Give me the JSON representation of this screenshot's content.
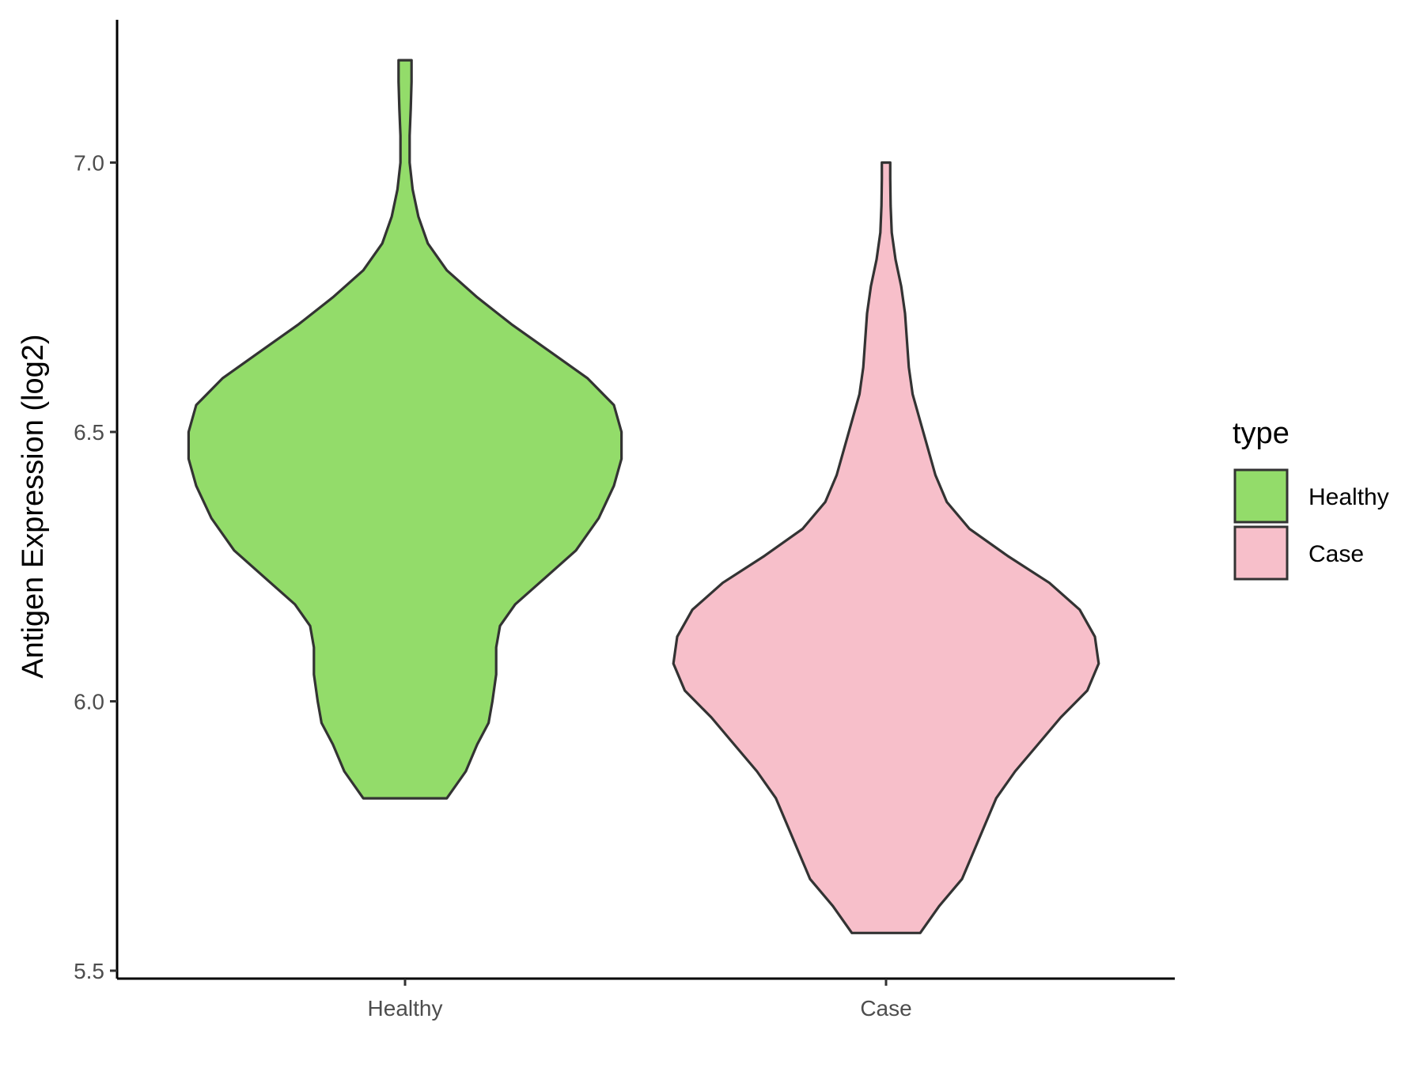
{
  "chart_data": {
    "type": "violin",
    "ylabel": "Antigen Expression (log2)",
    "xlabel": "",
    "ylim": [
      5.5,
      7.25
    ],
    "yticks": [
      5.5,
      6.0,
      6.5,
      7.0
    ],
    "ytick_labels": [
      "5.5",
      "6.0",
      "6.5",
      "7.0"
    ],
    "categories": [
      "Healthy",
      "Case"
    ],
    "legend": {
      "title": "type",
      "position": "right",
      "entries": [
        {
          "label": "Healthy",
          "color": "#93DC6A"
        },
        {
          "label": "Case",
          "color": "#F7BFCA"
        }
      ]
    },
    "series": [
      {
        "category": "Healthy",
        "color": "#93DC6A",
        "ymin": 5.82,
        "ymax": 7.19,
        "density": [
          [
            5.82,
            0.11
          ],
          [
            5.87,
            0.16
          ],
          [
            5.92,
            0.19
          ],
          [
            5.96,
            0.22
          ],
          [
            6.0,
            0.23
          ],
          [
            6.05,
            0.24
          ],
          [
            6.1,
            0.24
          ],
          [
            6.14,
            0.25
          ],
          [
            6.18,
            0.29
          ],
          [
            6.23,
            0.37
          ],
          [
            6.28,
            0.45
          ],
          [
            6.34,
            0.51
          ],
          [
            6.4,
            0.55
          ],
          [
            6.45,
            0.57
          ],
          [
            6.5,
            0.57
          ],
          [
            6.55,
            0.55
          ],
          [
            6.6,
            0.48
          ],
          [
            6.65,
            0.38
          ],
          [
            6.7,
            0.28
          ],
          [
            6.75,
            0.19
          ],
          [
            6.8,
            0.11
          ],
          [
            6.85,
            0.06
          ],
          [
            6.9,
            0.035
          ],
          [
            6.95,
            0.02
          ],
          [
            7.0,
            0.012
          ],
          [
            7.05,
            0.012
          ],
          [
            7.1,
            0.015
          ],
          [
            7.15,
            0.017
          ],
          [
            7.19,
            0.017
          ]
        ]
      },
      {
        "category": "Case",
        "color": "#F7BFCA",
        "ymin": 5.57,
        "ymax": 7.0,
        "density": [
          [
            5.57,
            0.09
          ],
          [
            5.62,
            0.14
          ],
          [
            5.67,
            0.2
          ],
          [
            5.72,
            0.23
          ],
          [
            5.77,
            0.26
          ],
          [
            5.82,
            0.29
          ],
          [
            5.87,
            0.34
          ],
          [
            5.92,
            0.4
          ],
          [
            5.97,
            0.46
          ],
          [
            6.02,
            0.53
          ],
          [
            6.07,
            0.56
          ],
          [
            6.12,
            0.55
          ],
          [
            6.17,
            0.51
          ],
          [
            6.22,
            0.43
          ],
          [
            6.27,
            0.32
          ],
          [
            6.32,
            0.22
          ],
          [
            6.37,
            0.16
          ],
          [
            6.42,
            0.13
          ],
          [
            6.47,
            0.11
          ],
          [
            6.52,
            0.09
          ],
          [
            6.57,
            0.07
          ],
          [
            6.62,
            0.06
          ],
          [
            6.67,
            0.055
          ],
          [
            6.72,
            0.05
          ],
          [
            6.77,
            0.04
          ],
          [
            6.82,
            0.025
          ],
          [
            6.87,
            0.015
          ],
          [
            6.92,
            0.012
          ],
          [
            6.97,
            0.011
          ],
          [
            7.0,
            0.011
          ]
        ]
      }
    ]
  }
}
